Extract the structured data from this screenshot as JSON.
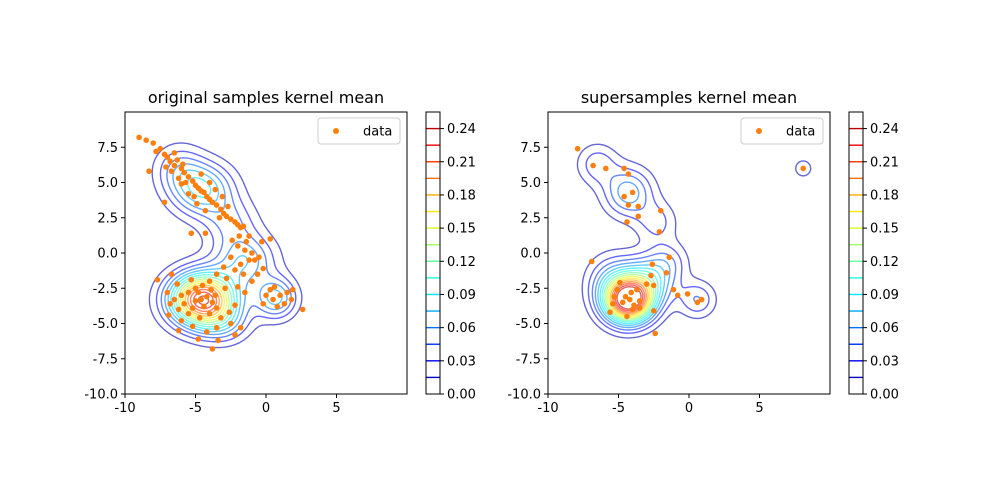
{
  "chart_data": [
    {
      "type": "contour",
      "title": "original samples kernel mean",
      "xlabel": "",
      "ylabel": "",
      "xlim": [
        -10,
        10
      ],
      "ylim": [
        -10,
        10
      ],
      "xticks": [
        -10,
        -5,
        0,
        5
      ],
      "yticks": [
        -10.0,
        -7.5,
        -5.0,
        -2.5,
        0.0,
        2.5,
        5.0,
        7.5
      ],
      "legend": {
        "placement": "top-right",
        "entries": [
          "data"
        ]
      },
      "scatter_color": "#ff7f0e",
      "colorbar": {
        "ticks": [
          "0.00",
          "0.03",
          "0.06",
          "0.09",
          "0.12",
          "0.15",
          "0.18",
          "0.21",
          "0.24"
        ],
        "range": [
          0,
          0.255
        ],
        "colormap": "jet"
      },
      "kernel_components": [
        {
          "mx": -4.5,
          "my": -3.3,
          "sx": 1.6,
          "sy": 1.3,
          "w": 0.24
        },
        {
          "mx": -4.5,
          "my": 4.5,
          "sx": 1.5,
          "sy": 1.3,
          "w": 0.09
        },
        {
          "mx": -6.2,
          "my": 6.0,
          "sx": 1.2,
          "sy": 1.2,
          "w": 0.04
        },
        {
          "mx": -2.5,
          "my": 2.2,
          "sx": 1.3,
          "sy": 1.2,
          "w": 0.04
        },
        {
          "mx": -1.5,
          "my": -0.5,
          "sx": 1.5,
          "sy": 1.3,
          "w": 0.07
        },
        {
          "mx": 0.7,
          "my": -3.2,
          "sx": 1.0,
          "sy": 1.0,
          "w": 0.08
        },
        {
          "mx": -3.0,
          "my": -5.0,
          "sx": 1.3,
          "sy": 1.0,
          "w": 0.04
        }
      ],
      "points": [
        [
          -9.0,
          8.2
        ],
        [
          -8.5,
          8.0
        ],
        [
          -8.0,
          7.8
        ],
        [
          -7.5,
          7.4
        ],
        [
          -7.2,
          7.0
        ],
        [
          -7.0,
          6.8
        ],
        [
          -6.8,
          6.5
        ],
        [
          -6.5,
          6.2
        ],
        [
          -6.3,
          6.6
        ],
        [
          -6.0,
          6.0
        ],
        [
          -5.8,
          5.7
        ],
        [
          -5.5,
          5.4
        ],
        [
          -5.2,
          5.1
        ],
        [
          -5.0,
          4.8
        ],
        [
          -4.8,
          4.6
        ],
        [
          -4.6,
          4.4
        ],
        [
          -4.4,
          4.3
        ],
        [
          -4.2,
          4.0
        ],
        [
          -4.0,
          3.8
        ],
        [
          -3.8,
          3.6
        ],
        [
          -3.5,
          3.4
        ],
        [
          -3.2,
          3.1
        ],
        [
          -3.0,
          2.8
        ],
        [
          -2.8,
          2.6
        ],
        [
          -2.5,
          2.4
        ],
        [
          -2.2,
          2.2
        ],
        [
          -2.0,
          2.0
        ],
        [
          -1.8,
          1.8
        ],
        [
          -6.2,
          5.3
        ],
        [
          -5.5,
          4.2
        ],
        [
          -4.0,
          5.0
        ],
        [
          -3.6,
          4.5
        ],
        [
          -6.7,
          5.8
        ],
        [
          -5.9,
          6.3
        ],
        [
          -4.9,
          3.5
        ],
        [
          -3.3,
          2.5
        ],
        [
          -7.8,
          7.2
        ],
        [
          -6.0,
          4.9
        ],
        [
          -4.3,
          3.0
        ],
        [
          -5.1,
          4.0
        ],
        [
          -8.3,
          5.8
        ],
        [
          -7.2,
          3.6
        ],
        [
          -5.3,
          1.4
        ],
        [
          -2.7,
          3.3
        ],
        [
          -1.2,
          1.2
        ],
        [
          0.3,
          1.0
        ],
        [
          -1.6,
          1.9
        ],
        [
          -0.3,
          0.8
        ],
        [
          -4.6,
          5.6
        ],
        [
          -5.7,
          5.0
        ],
        [
          -2.0,
          0.5
        ],
        [
          -1.5,
          0.2
        ],
        [
          -1.0,
          0.0
        ],
        [
          -0.5,
          -0.3
        ],
        [
          -2.5,
          -0.3
        ],
        [
          -1.8,
          -0.8
        ],
        [
          -1.2,
          -0.5
        ],
        [
          -3.0,
          -1.0
        ],
        [
          -2.2,
          -1.2
        ],
        [
          -1.6,
          -1.5
        ],
        [
          -3.5,
          -1.5
        ],
        [
          -2.8,
          -1.8
        ],
        [
          -4.0,
          -2.0
        ],
        [
          -4.5,
          -2.3
        ],
        [
          -5.0,
          -2.5
        ],
        [
          -5.5,
          -2.8
        ],
        [
          -6.0,
          -3.0
        ],
        [
          -6.5,
          -3.3
        ],
        [
          -5.8,
          -3.6
        ],
        [
          -5.2,
          -3.9
        ],
        [
          -4.6,
          -3.3
        ],
        [
          -4.2,
          -3.1
        ],
        [
          -3.8,
          -3.5
        ],
        [
          -3.5,
          -3.9
        ],
        [
          -4.0,
          -4.3
        ],
        [
          -4.7,
          -4.6
        ],
        [
          -5.5,
          -4.3
        ],
        [
          -6.2,
          -4.0
        ],
        [
          -6.8,
          -3.6
        ],
        [
          -7.0,
          -2.8
        ],
        [
          -3.2,
          -4.6
        ],
        [
          -2.6,
          -4.2
        ],
        [
          -2.2,
          -3.7
        ],
        [
          -2.5,
          -5.0
        ],
        [
          -3.5,
          -5.3
        ],
        [
          -4.2,
          -5.6
        ],
        [
          -5.2,
          -5.2
        ],
        [
          -6.0,
          -4.8
        ],
        [
          -4.8,
          -2.8
        ],
        [
          -3.9,
          -2.6
        ],
        [
          -4.4,
          -3.8
        ],
        [
          -5.0,
          -3.4
        ],
        [
          -3.6,
          -3.0
        ],
        [
          -2.9,
          -2.5
        ],
        [
          -2.0,
          -2.4
        ],
        [
          -1.5,
          -2.8
        ],
        [
          -1.0,
          -2.0
        ],
        [
          -0.6,
          -1.5
        ],
        [
          -0.2,
          -1.1
        ],
        [
          -6.3,
          -2.2
        ],
        [
          -7.7,
          -1.9
        ],
        [
          -6.7,
          -1.5
        ],
        [
          -5.3,
          -1.9
        ],
        [
          -3.4,
          -6.2
        ],
        [
          -3.8,
          -6.8
        ],
        [
          -2.2,
          -5.8
        ],
        [
          -4.8,
          -6.1
        ],
        [
          -1.8,
          -5.3
        ],
        [
          -6.9,
          -4.4
        ],
        [
          -6.2,
          -5.5
        ],
        [
          0.0,
          -3.0
        ],
        [
          0.5,
          -3.3
        ],
        [
          1.0,
          -3.0
        ],
        [
          1.5,
          -2.8
        ],
        [
          0.8,
          -3.8
        ],
        [
          0.3,
          -2.6
        ],
        [
          1.3,
          -3.6
        ],
        [
          -0.2,
          -3.6
        ],
        [
          0.6,
          -2.4
        ],
        [
          1.8,
          -3.3
        ],
        [
          1.9,
          -2.6
        ],
        [
          2.6,
          -4.0
        ],
        [
          -0.8,
          -0.5
        ],
        [
          -1.4,
          0.8
        ],
        [
          -2.4,
          0.9
        ],
        [
          -4.3,
          1.4
        ],
        [
          -3.1,
          4.0
        ],
        [
          -7.1,
          6.1
        ],
        [
          -6.5,
          7.1
        ],
        [
          -1.9,
          1.2
        ]
      ]
    },
    {
      "type": "contour",
      "title": "supersamples kernel mean",
      "xlabel": "",
      "ylabel": "",
      "xlim": [
        -10,
        10
      ],
      "ylim": [
        -10,
        10
      ],
      "xticks": [
        -10,
        -5,
        0,
        5
      ],
      "yticks": [
        -10.0,
        -7.5,
        -5.0,
        -2.5,
        0.0,
        2.5,
        5.0,
        7.5
      ],
      "legend": {
        "placement": "top-right",
        "entries": [
          "data"
        ]
      },
      "scatter_color": "#ff7f0e",
      "colorbar": {
        "ticks": [
          "0.00",
          "0.03",
          "0.06",
          "0.09",
          "0.12",
          "0.15",
          "0.18",
          "0.21",
          "0.24"
        ],
        "range": [
          0,
          0.255
        ],
        "colormap": "jet"
      },
      "kernel_components": [
        {
          "mx": -4.3,
          "my": -3.4,
          "sx": 1.2,
          "sy": 1.1,
          "w": 0.25
        },
        {
          "mx": -3.0,
          "my": -2.0,
          "sx": 1.3,
          "sy": 1.2,
          "w": 0.08
        },
        {
          "mx": -5.5,
          "my": -2.0,
          "sx": 1.2,
          "sy": 1.3,
          "w": 0.05
        },
        {
          "mx": -4.3,
          "my": 4.3,
          "sx": 1.2,
          "sy": 1.2,
          "w": 0.07
        },
        {
          "mx": -6.5,
          "my": 6.3,
          "sx": 1.0,
          "sy": 1.0,
          "w": 0.04
        },
        {
          "mx": -2.3,
          "my": 2.2,
          "sx": 1.0,
          "sy": 1.0,
          "w": 0.035
        },
        {
          "mx": 0.6,
          "my": -3.3,
          "sx": 0.9,
          "sy": 0.9,
          "w": 0.045
        },
        {
          "mx": -1.5,
          "my": -0.6,
          "sx": 1.0,
          "sy": 1.0,
          "w": 0.035
        },
        {
          "mx": 8.1,
          "my": 6.0,
          "sx": 0.45,
          "sy": 0.45,
          "w": 0.03
        }
      ],
      "points": [
        [
          -7.9,
          7.4
        ],
        [
          -6.8,
          6.2
        ],
        [
          -5.9,
          6.0
        ],
        [
          -4.6,
          6.0
        ],
        [
          -4.3,
          5.6
        ],
        [
          -4.0,
          4.3
        ],
        [
          -4.6,
          4.0
        ],
        [
          -4.3,
          3.4
        ],
        [
          -3.6,
          3.3
        ],
        [
          -4.4,
          2.2
        ],
        [
          -2.1,
          1.5
        ],
        [
          -2.0,
          3.0
        ],
        [
          -3.6,
          2.6
        ],
        [
          -2.6,
          -0.8
        ],
        [
          -1.4,
          -0.3
        ],
        [
          -2.7,
          -1.6
        ],
        [
          -6.9,
          -0.6
        ],
        [
          -2.5,
          -2.3
        ],
        [
          -1.1,
          -2.6
        ],
        [
          -4.5,
          -3.1
        ],
        [
          -4.7,
          -3.5
        ],
        [
          -4.2,
          -3.3
        ],
        [
          -3.9,
          -3.7
        ],
        [
          -5.1,
          -2.6
        ],
        [
          -5.3,
          -3.1
        ],
        [
          -4.1,
          -2.8
        ],
        [
          -3.5,
          -3.4
        ],
        [
          -3.7,
          -2.6
        ],
        [
          -4.0,
          -4.0
        ],
        [
          -5.6,
          -4.2
        ],
        [
          -3.5,
          -3.9
        ],
        [
          -2.5,
          -4.1
        ],
        [
          -2.4,
          -5.7
        ],
        [
          -1.6,
          -1.4
        ],
        [
          -0.8,
          -3.0
        ],
        [
          0.6,
          -3.5
        ],
        [
          0.9,
          -3.3
        ],
        [
          -0.1,
          -2.9
        ],
        [
          -4.9,
          -2.1
        ],
        [
          -5.4,
          -3.6
        ],
        [
          -3.0,
          -2.2
        ],
        [
          -4.4,
          -4.5
        ],
        [
          8.1,
          6.0
        ]
      ]
    }
  ]
}
